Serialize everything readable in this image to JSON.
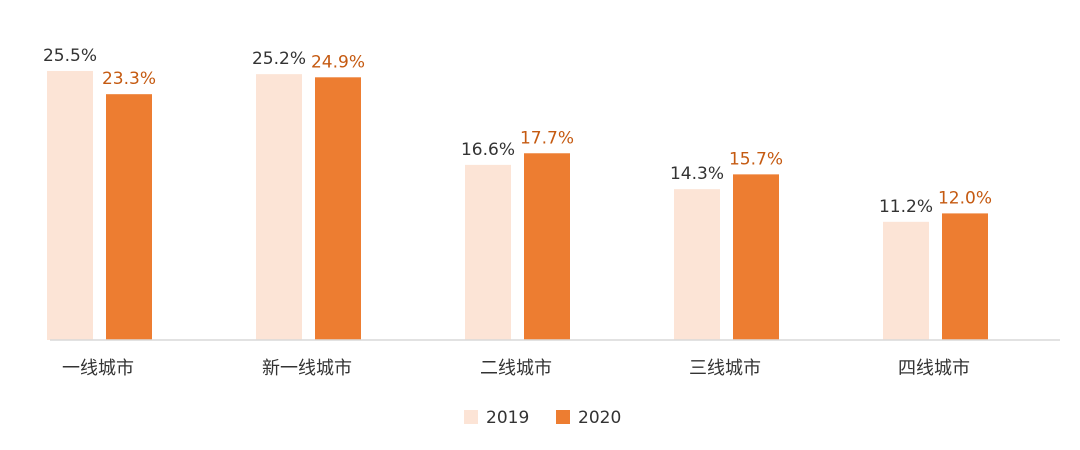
{
  "chart_data": {
    "type": "bar",
    "categories": [
      "一线城市",
      "新一线城市",
      "二线城市",
      "三线城市",
      "四线城市"
    ],
    "series": [
      {
        "name": "2019",
        "values": [
          25.5,
          25.2,
          16.6,
          14.3,
          11.2
        ],
        "labels": [
          "25.5%",
          "25.2%",
          "16.6%",
          "14.3%",
          "11.2%"
        ],
        "color": "#FCE4D6",
        "label_color": "#333333"
      },
      {
        "name": "2020",
        "values": [
          23.3,
          24.9,
          17.7,
          15.7,
          12.0
        ],
        "labels": [
          "23.3%",
          "24.9%",
          "17.7%",
          "15.7%",
          "12.0%"
        ],
        "color": "#ED7D31",
        "label_color": "#C55A11"
      }
    ],
    "unit": "%",
    "ylim": [
      0,
      27.5
    ],
    "grid": false,
    "legend_position": "bottom-center"
  }
}
